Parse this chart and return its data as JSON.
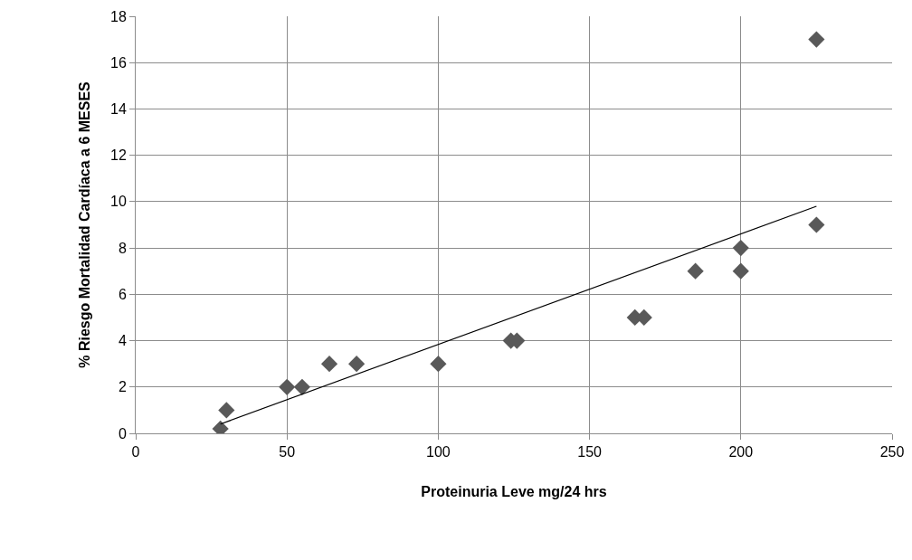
{
  "chart_data": {
    "type": "scatter",
    "xlabel": "Proteinuria Leve mg/24 hrs",
    "ylabel": "% Riesgo Mortalidad Cardíaca a 6 MESES",
    "xlim": [
      0,
      250
    ],
    "xticks": [
      0,
      50,
      100,
      150,
      200,
      250
    ],
    "ylim": [
      0,
      18
    ],
    "yticks": [
      0,
      2,
      4,
      6,
      8,
      10,
      12,
      14,
      16,
      18
    ],
    "grid": true,
    "marker": "diamond",
    "series": [
      {
        "color": "#595959",
        "x": [
          28,
          30,
          50,
          55,
          64,
          73,
          100,
          124,
          126,
          165,
          168,
          185,
          200,
          200,
          225,
          225
        ],
        "values": [
          0.2,
          1,
          2,
          2,
          3,
          3,
          3,
          4,
          4,
          5,
          5,
          7,
          8,
          7,
          9,
          17
        ]
      },
      {
        "type": "line",
        "color": "#000000",
        "marker": "none",
        "line_style": "solid",
        "x": [
          28,
          225
        ],
        "values": [
          0.4,
          9.8
        ]
      }
    ]
  }
}
